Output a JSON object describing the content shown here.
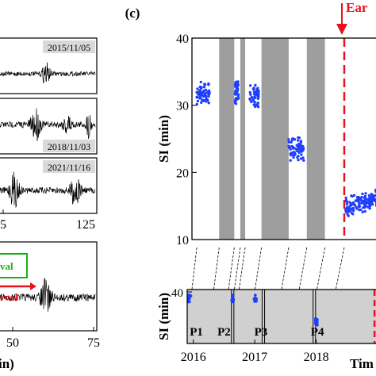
{
  "panel_c": {
    "label": "(c)",
    "annotation": "Ear",
    "x_axis_label": "Tim",
    "colors": {
      "points": "#1f3fff",
      "shade": "#9e9e9e",
      "shade_light": "#d0d0d0",
      "event": "#e8141d"
    }
  },
  "left_panels": {
    "dates": [
      "2015/11/05",
      "2018/11/03",
      "2021/11/16"
    ],
    "ticks_bottom_upper": [
      "5",
      "125"
    ],
    "ticks_bottom_lower": [
      "50",
      "75"
    ],
    "xlabel_fragment": "in)",
    "legend_green": "val",
    "legend_red": "rval",
    "colors": {
      "waveform": "#000000",
      "green": "#17b317",
      "red": "#e8141d",
      "date_bg": "#d9d9d9"
    }
  },
  "chart_data": [
    {
      "type": "scatter",
      "title": "",
      "xlabel": "Tim",
      "ylabel": "SI (min)",
      "xlim": [
        2015.75,
        2018.9
      ],
      "ylim": [
        10,
        40
      ],
      "yticks": [
        "10",
        "20",
        "30",
        "40"
      ],
      "shaded_intervals": [
        [
          2016.2,
          2016.45
        ],
        [
          2016.55,
          2016.63
        ],
        [
          2016.9,
          2017.35
        ],
        [
          2017.65,
          2017.95
        ]
      ],
      "event_line_x": 2018.27,
      "series": [
        {
          "name": "",
          "clusters": [
            {
              "x_range": [
                2015.83,
                2016.05
              ],
              "y_center": 31.5,
              "y_spread": 2.0
            },
            {
              "x_range": [
                2016.46,
                2016.52
              ],
              "y_center": 32.0,
              "y_spread": 1.8
            },
            {
              "x_range": [
                2016.7,
                2016.86
              ],
              "y_center": 31.5,
              "y_spread": 2.0
            },
            {
              "x_range": [
                2017.35,
                2017.6
              ],
              "y_center": 23.5,
              "y_spread": 2.0
            },
            {
              "x_range": [
                2018.29,
                2018.9
              ],
              "y_center": 14.8,
              "y_spread": 1.6
            }
          ]
        }
      ]
    },
    {
      "type": "scatter",
      "title": "",
      "xlabel": "",
      "ylabel": "SI (min)",
      "xlim": [
        2015.9,
        2019.0
      ],
      "ylim": [
        10,
        40
      ],
      "xticks": [
        "2016",
        "2017",
        "2018"
      ],
      "ytick_top": "40",
      "periods": [
        "P1",
        "P2",
        "P3",
        "P4"
      ],
      "event_line_x": 2018.95
    }
  ]
}
